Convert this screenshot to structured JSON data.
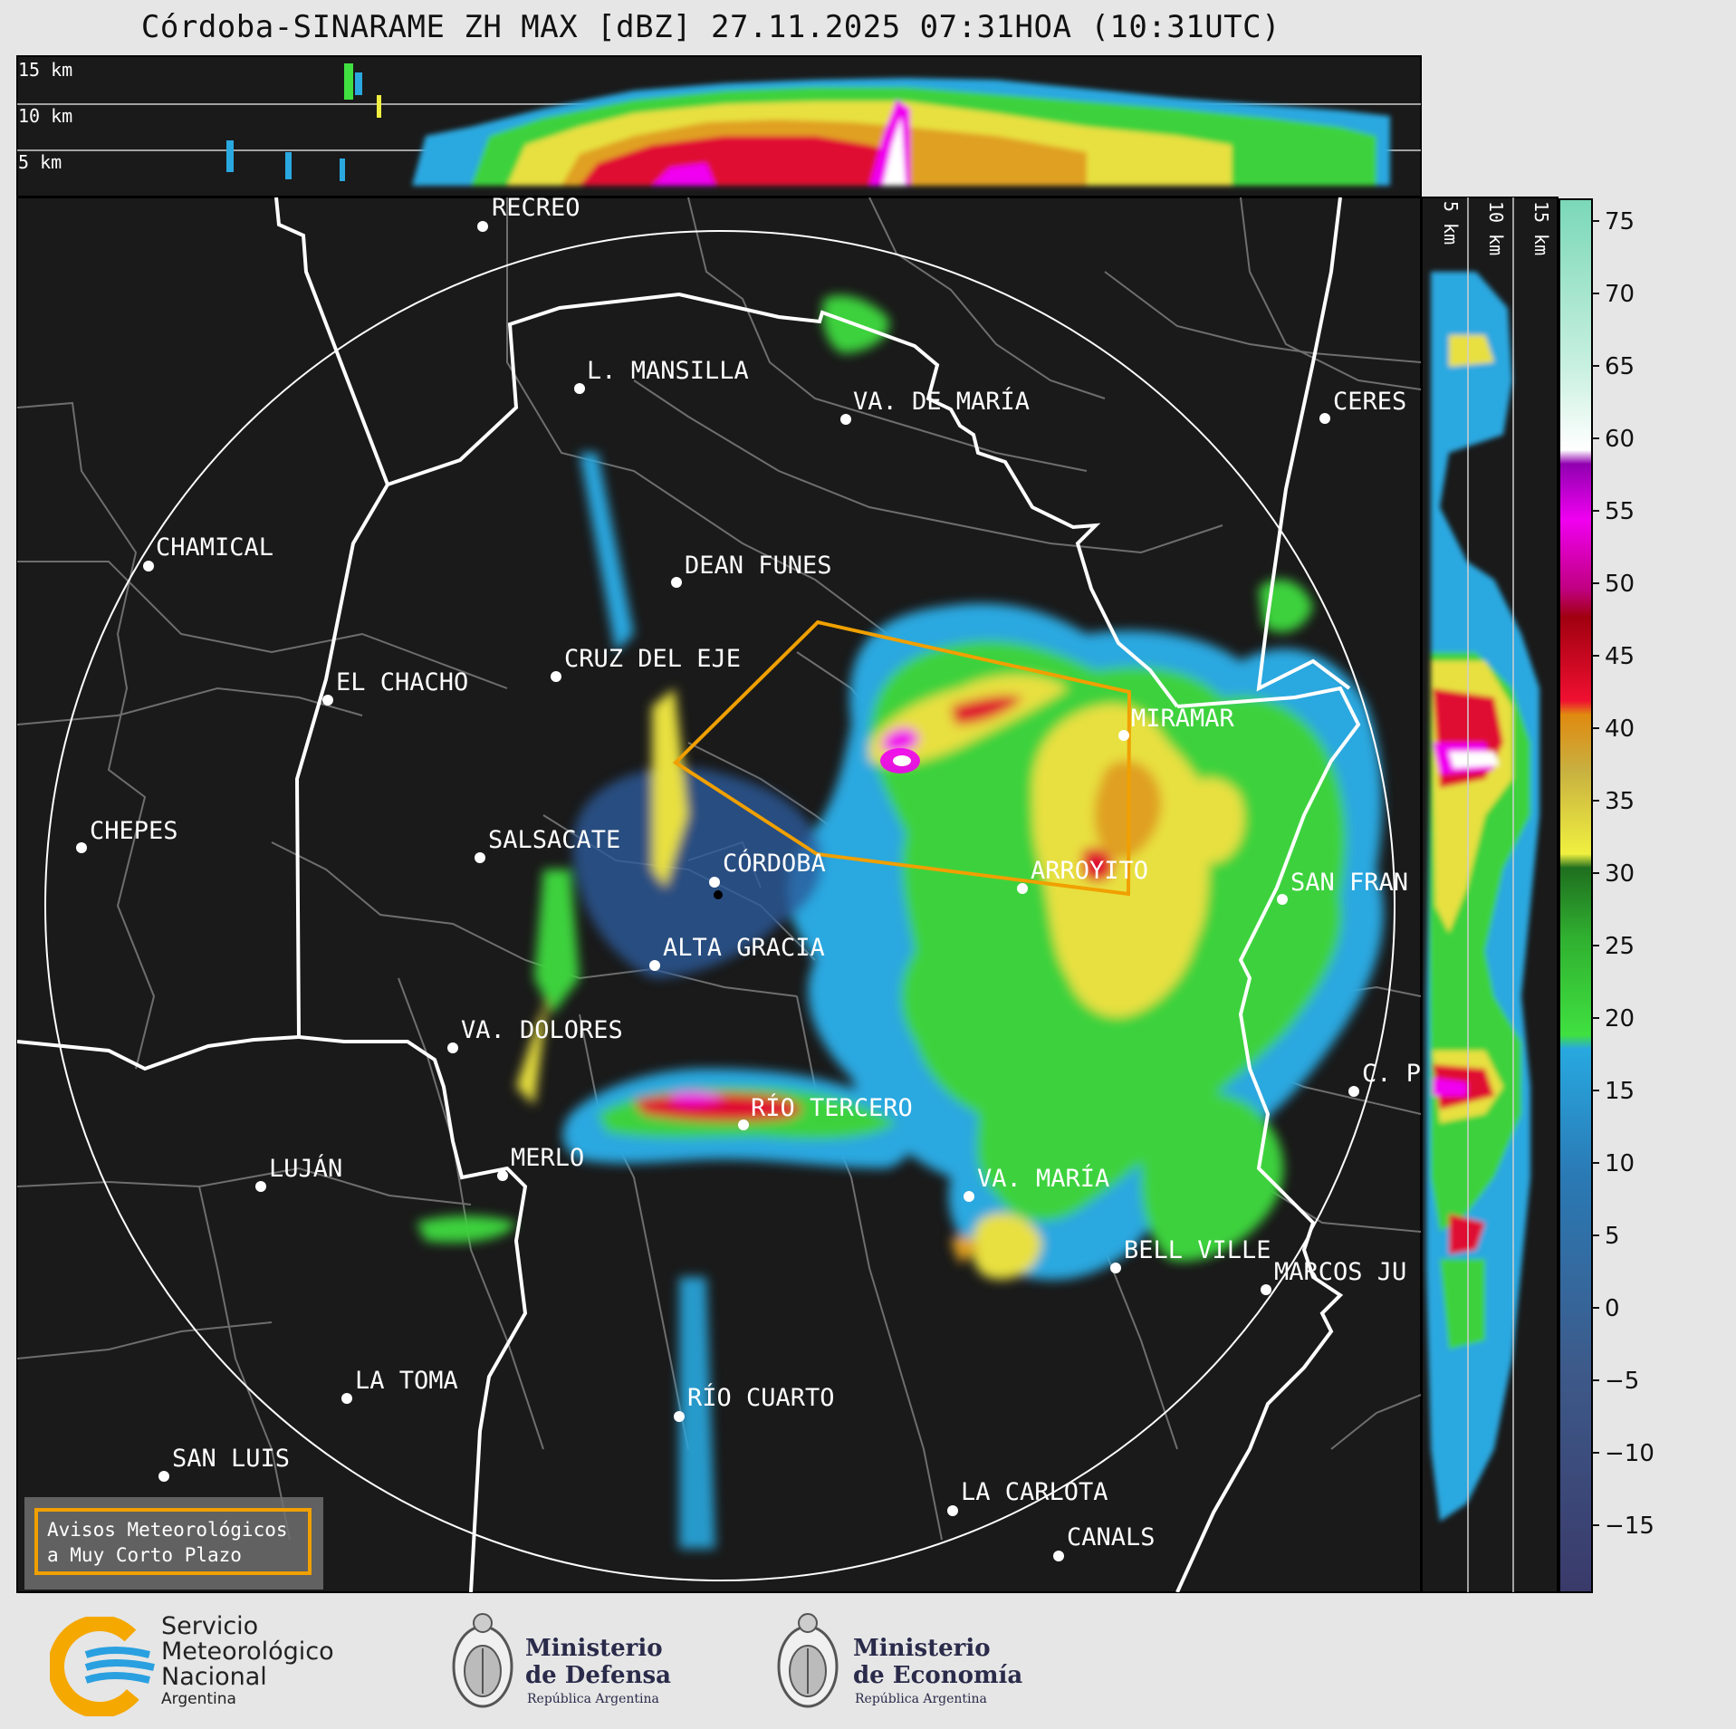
{
  "title": "Córdoba-SINARAME ZH MAX [dBZ] 27.11.2025 07:31HOA (10:31UTC)",
  "height_labels_top": [
    "15 km",
    "10 km",
    "5 km"
  ],
  "height_labels_side": [
    "5 km",
    "10 km",
    "15 km"
  ],
  "colorbar": {
    "ticks": [
      "75",
      "70",
      "65",
      "60",
      "55",
      "50",
      "45",
      "40",
      "35",
      "30",
      "25",
      "20",
      "15",
      "10",
      "5",
      "0",
      "−5",
      "−10",
      "−15"
    ]
  },
  "cities": [
    {
      "name": "RECREO"
    },
    {
      "name": "L. MANSILLA"
    },
    {
      "name": "VA. DE MARÍA"
    },
    {
      "name": "CERES"
    },
    {
      "name": "CHAMICAL"
    },
    {
      "name": "DEAN FUNES"
    },
    {
      "name": "CRUZ DEL EJE"
    },
    {
      "name": "EL CHACHO"
    },
    {
      "name": "MIRAMAR"
    },
    {
      "name": "CHEPES"
    },
    {
      "name": "SALSACATE"
    },
    {
      "name": "CÓRDOBA"
    },
    {
      "name": "ARROYITO"
    },
    {
      "name": "SAN FRAN"
    },
    {
      "name": "ALTA GRACIA"
    },
    {
      "name": "VA. DOLORES"
    },
    {
      "name": "C. P"
    },
    {
      "name": "RÍO TERCERO"
    },
    {
      "name": "LUJÁN"
    },
    {
      "name": "MERLO"
    },
    {
      "name": "VA. MARÍA"
    },
    {
      "name": "BELL VILLE"
    },
    {
      "name": "MARCOS JU"
    },
    {
      "name": "LA TOMA"
    },
    {
      "name": "RÍO CUARTO"
    },
    {
      "name": "SAN LUIS"
    },
    {
      "name": "LA CARLOTA"
    },
    {
      "name": "CANALS"
    }
  ],
  "warning_box": {
    "line1": "Avisos Meteorológicos",
    "line2": "a Muy Corto Plazo"
  },
  "footer": {
    "smn": {
      "line1": "Servicio",
      "line2": "Meteorológico",
      "line3": "Nacional",
      "line4": "Argentina"
    },
    "defensa": {
      "line1": "Ministerio",
      "line2": "de Defensa",
      "line3": "República Argentina"
    },
    "economia": {
      "line1": "Ministerio",
      "line2": "de Economía",
      "line3": "República Argentina"
    }
  },
  "colors": {
    "background": "#1a1a1a",
    "warning_polygon": "#f0a000",
    "range_ring": "#ffffff"
  }
}
